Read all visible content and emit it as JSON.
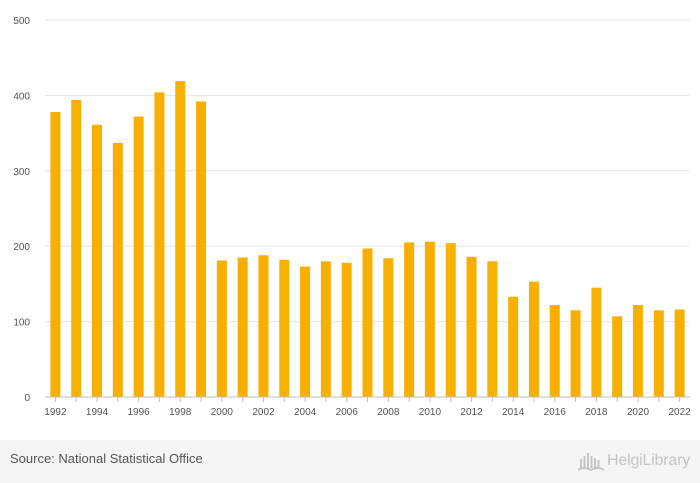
{
  "chart_data": {
    "type": "bar",
    "x": [
      1992,
      1993,
      1994,
      1995,
      1996,
      1997,
      1998,
      1999,
      2000,
      2001,
      2002,
      2003,
      2004,
      2005,
      2006,
      2007,
      2008,
      2009,
      2010,
      2011,
      2012,
      2013,
      2014,
      2015,
      2016,
      2017,
      2018,
      2019,
      2020,
      2021,
      2022
    ],
    "values": [
      378,
      394,
      361,
      337,
      372,
      404,
      419,
      392,
      181,
      185,
      188,
      182,
      173,
      180,
      178,
      197,
      184,
      205,
      206,
      204,
      186,
      180,
      133,
      153,
      122,
      115,
      145,
      107,
      122,
      115,
      116
    ],
    "x_tick_labels": [
      "1992",
      "1994",
      "1996",
      "1998",
      "2000",
      "2002",
      "2004",
      "2006",
      "2008",
      "2010",
      "2012",
      "2014",
      "2016",
      "2018",
      "2020",
      "2022"
    ],
    "y_ticks": [
      0,
      100,
      200,
      300,
      400,
      500
    ],
    "ylim": [
      0,
      500
    ],
    "grid": true,
    "bar_color": "#f7b000",
    "title": "",
    "xlabel": "",
    "ylabel": ""
  },
  "footer": {
    "source": "Source: National Statistical Office",
    "brand": "HelgiLibrary"
  },
  "colors": {
    "grid": "#e6e6e6",
    "axis": "#bfbfbf",
    "footer_bg": "#f5f5f5",
    "brand": "#c4c4c4"
  }
}
